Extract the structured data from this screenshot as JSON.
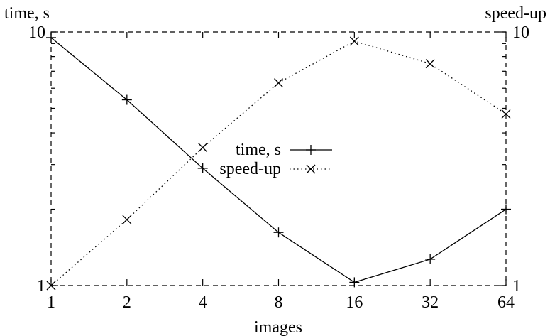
{
  "chart_data": {
    "type": "line",
    "xlabel": "images",
    "ylabel_left": "time, s",
    "ylabel_right": "speed-up",
    "x_scale": "log2",
    "y_scale_left": "log10",
    "y_scale_right": "log10",
    "x": [
      1,
      2,
      4,
      8,
      16,
      32,
      64
    ],
    "x_tick_labels": [
      "1",
      "2",
      "4",
      "8",
      "16",
      "32",
      "64"
    ],
    "ylim_left": [
      1,
      10
    ],
    "ylim_right": [
      1,
      10
    ],
    "y_left_tick_labels": [
      "1",
      "10"
    ],
    "y_right_tick_labels": [
      "1",
      "10"
    ],
    "legend_position": "center",
    "grid": false,
    "series": [
      {
        "name": "time, s",
        "axis": "left",
        "marker": "plus",
        "line": "solid",
        "values": [
          9.5,
          5.4,
          2.9,
          1.62,
          1.03,
          1.27,
          2.0
        ]
      },
      {
        "name": "speed-up",
        "axis": "right",
        "marker": "cross",
        "line": "dotted",
        "values": [
          1.0,
          1.82,
          3.5,
          6.3,
          9.2,
          7.5,
          4.75
        ]
      }
    ]
  }
}
